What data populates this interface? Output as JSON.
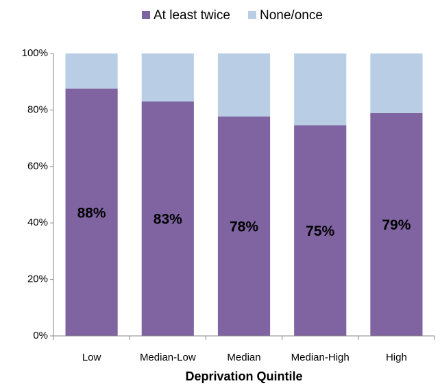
{
  "chart_data": {
    "type": "stacked_bar",
    "x_label": "Deprivation Quintile",
    "categories": [
      "Low",
      "Median-Low",
      "Median",
      "Median-High",
      "High"
    ],
    "series": [
      {
        "name": "At least twice",
        "color": "#8064a2",
        "values": [
          87.5,
          83,
          77.7,
          74.6,
          78.9
        ],
        "value_labels": [
          "88%",
          "83%",
          "78%",
          "75%",
          "79%"
        ]
      },
      {
        "name": "None/once",
        "color": "#b9cde5",
        "values": [
          12.5,
          17,
          22.3,
          25.4,
          21.1
        ]
      }
    ],
    "ylim": [
      0,
      100
    ],
    "yticks": [
      {
        "value": 0,
        "label": "0%"
      },
      {
        "value": 20,
        "label": "20%"
      },
      {
        "value": 40,
        "label": "40%"
      },
      {
        "value": 60,
        "label": "60%"
      },
      {
        "value": 80,
        "label": "80%"
      },
      {
        "value": 100,
        "label": "100%"
      }
    ],
    "legend": "top",
    "grid": false
  }
}
